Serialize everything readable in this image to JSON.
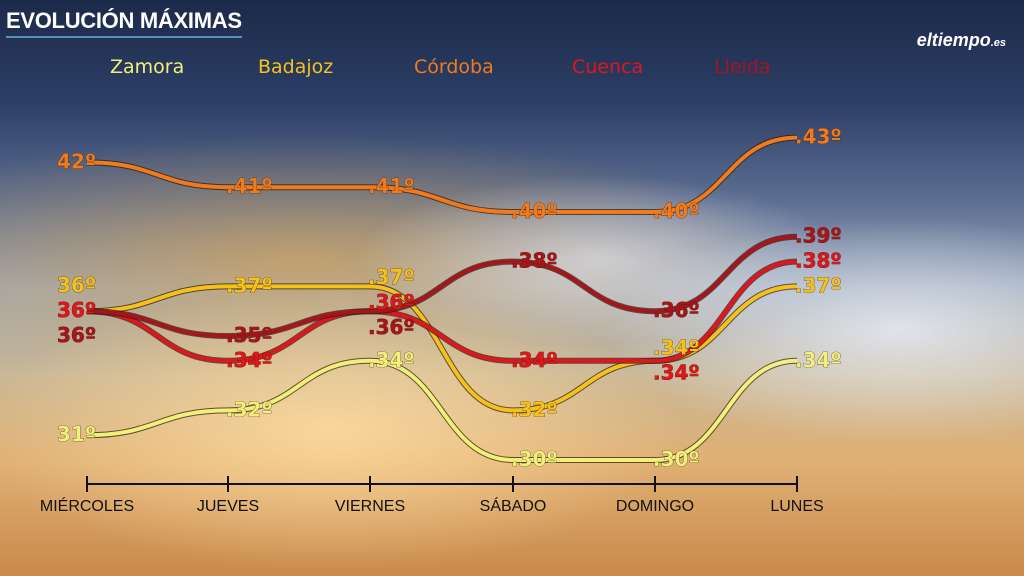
{
  "chart_data": {
    "type": "line",
    "title": "EVOLUCIÓN MÁXIMAS",
    "brand": "eltiempo",
    "brand_suffix": ".es",
    "categories": [
      "MIÉRCOLES",
      "JUEVES",
      "VIERNES",
      "SÁBADO",
      "DOMINGO",
      "LUNES"
    ],
    "unit": "º",
    "series": [
      {
        "name": "Zamora",
        "color": "#f2f07a",
        "values": [
          31,
          32,
          34,
          30,
          30,
          34
        ]
      },
      {
        "name": "Badajoz",
        "color": "#f5c21b",
        "values": [
          36,
          37,
          37,
          32,
          34,
          37
        ]
      },
      {
        "name": "Córdoba",
        "color": "#f07a1e",
        "values": [
          42,
          41,
          41,
          40,
          40,
          43
        ]
      },
      {
        "name": "Cuenca",
        "color": "#e0161c",
        "values": [
          36,
          34,
          36,
          34,
          34,
          38
        ]
      },
      {
        "name": "Lleida",
        "color": "#a8141c",
        "values": [
          36,
          35,
          36,
          38,
          36,
          39
        ]
      }
    ],
    "legend_position": "top",
    "grid": false
  }
}
